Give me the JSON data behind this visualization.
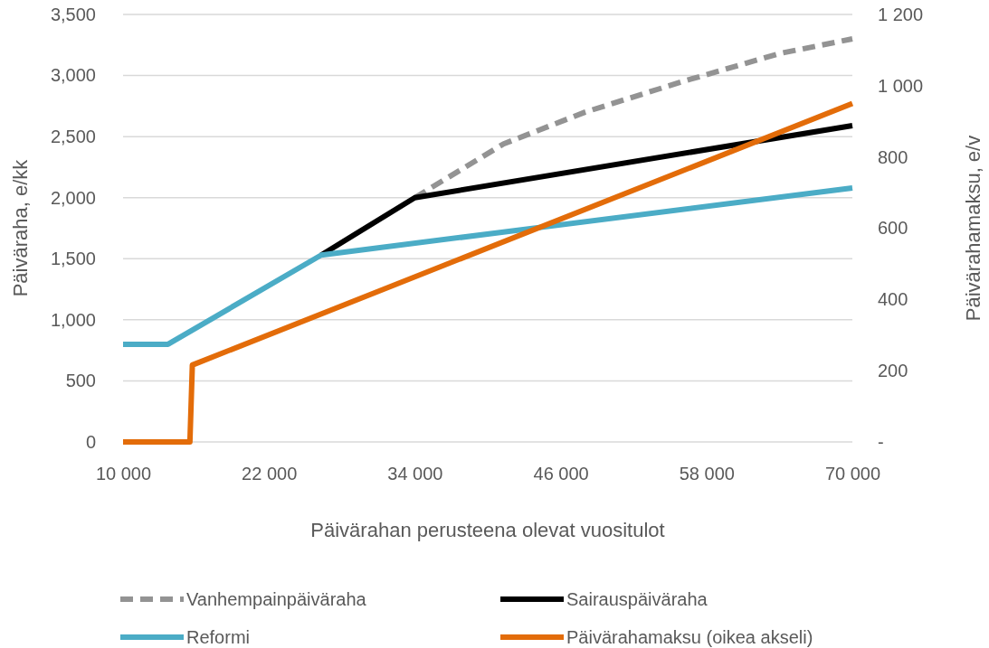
{
  "chart_data": {
    "type": "line",
    "xlabel": "Päivärahan perusteena olevat vuositulot",
    "ylabel": "Päiväraha, e/kk",
    "y2label": "Päivärahamaksu, e/v",
    "xlim": [
      10000,
      70000
    ],
    "xticks": [
      {
        "value": 10000,
        "label": "10 000"
      },
      {
        "value": 22000,
        "label": "22 000"
      },
      {
        "value": 34000,
        "label": "34 000"
      },
      {
        "value": 46000,
        "label": "46 000"
      },
      {
        "value": 58000,
        "label": "58 000"
      },
      {
        "value": 70000,
        "label": "70 000"
      }
    ],
    "ylim": [
      0,
      3500
    ],
    "yticks": [
      0,
      500,
      {
        "value": 1000,
        "label": "1,000"
      },
      {
        "value": 1500,
        "label": "1,500"
      },
      {
        "value": 2000,
        "label": "2,000"
      },
      {
        "value": 2500,
        "label": "2,500"
      },
      {
        "value": 3000,
        "label": "3,000"
      },
      {
        "value": 3500,
        "label": "3,500"
      }
    ],
    "y2lim": [
      0,
      1200
    ],
    "y2ticks": [
      {
        "value": 0,
        "label": "-"
      },
      200,
      400,
      600,
      800,
      {
        "value": 1000,
        "label": "1 000"
      },
      {
        "value": 1200,
        "label": "1 200"
      }
    ],
    "grid": "y",
    "legend": "bottom",
    "series": [
      {
        "name": "Vanhempainpäiväraha",
        "color": "#939393",
        "line_style": "dashed",
        "x": [
          34000,
          41300,
          48000,
          56000,
          64000,
          70000
        ],
        "values": [
          2000,
          2440,
          2700,
          2950,
          3180,
          3300
        ]
      },
      {
        "name": "Sairauspäiväraha",
        "color": "#000000",
        "line_style": "solid",
        "x": [
          26300,
          34000,
          70000
        ],
        "values": [
          1530,
          2000,
          2590
        ]
      },
      {
        "name": "Reformi",
        "color": "#4bacc6",
        "line_style": "solid",
        "x": [
          10000,
          13700,
          26300,
          70000
        ],
        "values": [
          800,
          800,
          1530,
          2080
        ]
      },
      {
        "name": "Päivärahamaksu (oikea akseli)",
        "color": "#e36c09",
        "line_style": "solid",
        "axis": "y2",
        "x": [
          10000,
          15500,
          15700,
          70000
        ],
        "values": [
          0,
          0,
          216,
          950
        ]
      }
    ]
  }
}
